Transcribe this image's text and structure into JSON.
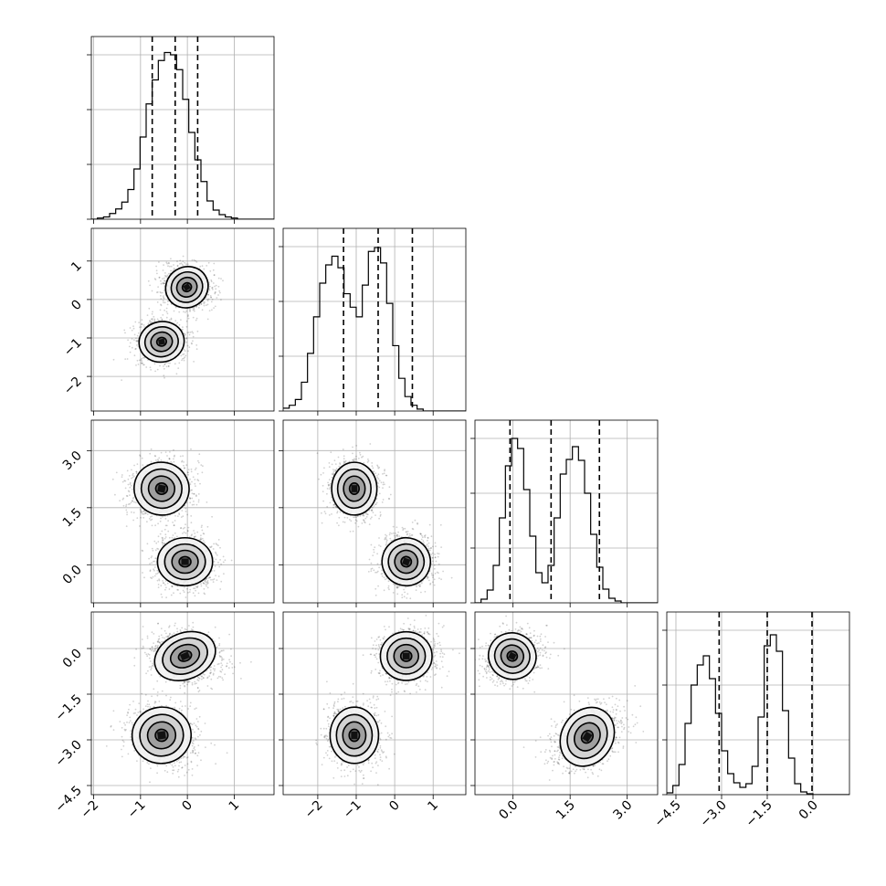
{
  "chart_data": {
    "type": "corner",
    "grid": true,
    "n_params": 4,
    "params": [
      {
        "range": [
          -2.05,
          1.85
        ],
        "ticks": [
          -2,
          -1,
          0,
          1
        ],
        "tick_labels": [
          "−2",
          "−1",
          "0",
          "1"
        ],
        "quantiles": [
          -0.75,
          -0.26,
          0.22
        ],
        "hist_edges_start": -2.05,
        "hist_bin_width": 0.13,
        "hist_counts": [
          0,
          1,
          2,
          5,
          9,
          15,
          26,
          44,
          72,
          101,
          122,
          139,
          146,
          144,
          131,
          105,
          76,
          52,
          33,
          16,
          8,
          4,
          2,
          1,
          0,
          0,
          0,
          0,
          0,
          0
        ],
        "hist_ymax": 160
      },
      {
        "range": [
          -2.9,
          1.85
        ],
        "ticks": [
          -2,
          -1,
          0,
          1
        ],
        "tick_labels": [
          "−2",
          "−1",
          "0",
          "1"
        ],
        "quantiles": [
          -1.33,
          -0.43,
          0.46
        ],
        "hist_edges_start": -2.9,
        "hist_bin_width": 0.1583,
        "hist_counts": [
          3,
          6,
          12,
          30,
          60,
          98,
          133,
          152,
          161,
          149,
          122,
          108,
          98,
          131,
          166,
          170,
          154,
          112,
          68,
          34,
          15,
          6,
          2,
          0,
          0,
          0,
          0,
          0,
          0,
          0
        ],
        "hist_ymax": 190
      },
      {
        "range": [
          -1.0,
          3.8
        ],
        "ticks": [
          0.0,
          1.5,
          3.0
        ],
        "tick_labels": [
          "0.0",
          "1.5",
          "3.0"
        ],
        "quantiles": [
          -0.08,
          1.0,
          2.27
        ],
        "hist_edges_start": -1.0,
        "hist_bin_width": 0.16,
        "hist_counts": [
          0,
          4,
          14,
          41,
          93,
          150,
          180,
          169,
          124,
          73,
          33,
          22,
          41,
          93,
          141,
          157,
          171,
          156,
          120,
          75,
          39,
          15,
          5,
          2,
          0,
          0,
          0,
          0,
          0,
          0
        ],
        "hist_ymax": 200
      },
      {
        "range": [
          -4.8,
          1.2
        ],
        "ticks": [
          -4.5,
          -3.0,
          -1.5,
          0.0
        ],
        "tick_labels": [
          "−4.5",
          "−3.0",
          "−1.5",
          "0.0"
        ],
        "quantiles": [
          -3.08,
          -1.5,
          -0.03
        ],
        "hist_edges_start": -4.8,
        "hist_bin_width": 0.2,
        "hist_counts": [
          2,
          10,
          33,
          78,
          120,
          142,
          152,
          127,
          89,
          48,
          23,
          13,
          8,
          12,
          31,
          85,
          163,
          175,
          157,
          92,
          40,
          12,
          3,
          1,
          0,
          0,
          0,
          0,
          0,
          0
        ],
        "hist_ymax": 200
      }
    ],
    "pairs": [
      {
        "x": 0,
        "y": 1,
        "modes": [
          {
            "cx": -0.01,
            "cy": 0.32,
            "sx": 0.22,
            "sy": 0.25,
            "rot": 0.55
          },
          {
            "cx": -0.55,
            "cy": -1.1,
            "sx": 0.23,
            "sy": 0.25,
            "rot": 0.2
          }
        ]
      },
      {
        "x": 0,
        "y": 2,
        "modes": [
          {
            "cx": -0.55,
            "cy": 2.0,
            "sx": 0.28,
            "sy": 0.33,
            "rot": -0.2
          },
          {
            "cx": -0.05,
            "cy": 0.08,
            "sx": 0.28,
            "sy": 0.3,
            "rot": 0.0
          }
        ]
      },
      {
        "x": 1,
        "y": 2,
        "modes": [
          {
            "cx": -1.05,
            "cy": 2.0,
            "sx": 0.28,
            "sy": 0.33,
            "rot": 0.0
          },
          {
            "cx": 0.3,
            "cy": 0.08,
            "sx": 0.3,
            "sy": 0.3,
            "rot": -0.35
          }
        ]
      },
      {
        "x": 0,
        "y": 3,
        "modes": [
          {
            "cx": -0.05,
            "cy": -0.25,
            "sx": 0.32,
            "sy": 0.36,
            "rot": 0.4
          },
          {
            "cx": -0.55,
            "cy": -2.85,
            "sx": 0.3,
            "sy": 0.44,
            "rot": 0.15
          }
        ]
      },
      {
        "x": 1,
        "y": 3,
        "modes": [
          {
            "cx": 0.3,
            "cy": -0.25,
            "sx": 0.32,
            "sy": 0.38,
            "rot": 0.0
          },
          {
            "cx": -1.05,
            "cy": -2.85,
            "sx": 0.3,
            "sy": 0.44,
            "rot": 0.0
          }
        ]
      },
      {
        "x": 2,
        "y": 3,
        "modes": [
          {
            "cx": -0.02,
            "cy": -0.25,
            "sx": 0.3,
            "sy": 0.36,
            "rot": -0.45
          },
          {
            "cx": 1.95,
            "cy": -2.9,
            "sx": 0.32,
            "sy": 0.48,
            "rot": -0.55
          }
        ]
      }
    ]
  }
}
